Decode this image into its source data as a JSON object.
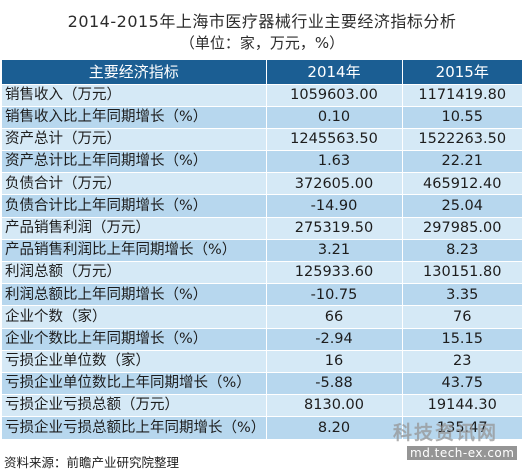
{
  "title": "2014-2015年上海市医疗器械行业主要经济指标分析",
  "subtitle": "（单位：家，万元，%）",
  "table": {
    "headers": [
      "主要经济指标",
      "2014年",
      "2015年"
    ],
    "rows": [
      {
        "label": "销售收入（万元）",
        "y2014": "1059603.00",
        "y2015": "1171419.80"
      },
      {
        "label": "销售收入比上年同期增长（%）",
        "y2014": "0.10",
        "y2015": "10.55"
      },
      {
        "label": "资产总计（万元）",
        "y2014": "1245563.50",
        "y2015": "1522263.50"
      },
      {
        "label": "资产总计比上年同期增长（%）",
        "y2014": "1.63",
        "y2015": "22.21"
      },
      {
        "label": "负债合计（万元）",
        "y2014": "372605.00",
        "y2015": "465912.40"
      },
      {
        "label": "负债合计比上年同期增长（%）",
        "y2014": "-14.90",
        "y2015": "25.04"
      },
      {
        "label": "产品销售利润（万元）",
        "y2014": "275319.50",
        "y2015": "297985.00"
      },
      {
        "label": "产品销售利润比上年同期增长（%）",
        "y2014": "3.21",
        "y2015": "8.23"
      },
      {
        "label": "利润总额（万元）",
        "y2014": "125933.60",
        "y2015": "130151.80"
      },
      {
        "label": "利润总额比上年同期增长（%）",
        "y2014": "-10.75",
        "y2015": "3.35"
      },
      {
        "label": "企业个数（家）",
        "y2014": "66",
        "y2015": "76"
      },
      {
        "label": "企业个数比上年同期增长（%）",
        "y2014": "-2.94",
        "y2015": "15.15"
      },
      {
        "label": "亏损企业单位数（家）",
        "y2014": "16",
        "y2015": "23"
      },
      {
        "label": "亏损企业单位数比上年同期增长（%）",
        "y2014": "-5.88",
        "y2015": "43.75"
      },
      {
        "label": "亏损企业亏损总额（万元）",
        "y2014": "8130.00",
        "y2015": "19144.30"
      },
      {
        "label": "亏损企业亏损总额比上年同期增长（%）",
        "y2014": "8.20",
        "y2015": "135.47"
      }
    ]
  },
  "source": "资料来源：前瞻产业研究院整理",
  "watermark": {
    "logo": "科技资讯网",
    "url": "md.tech-ex.com"
  }
}
